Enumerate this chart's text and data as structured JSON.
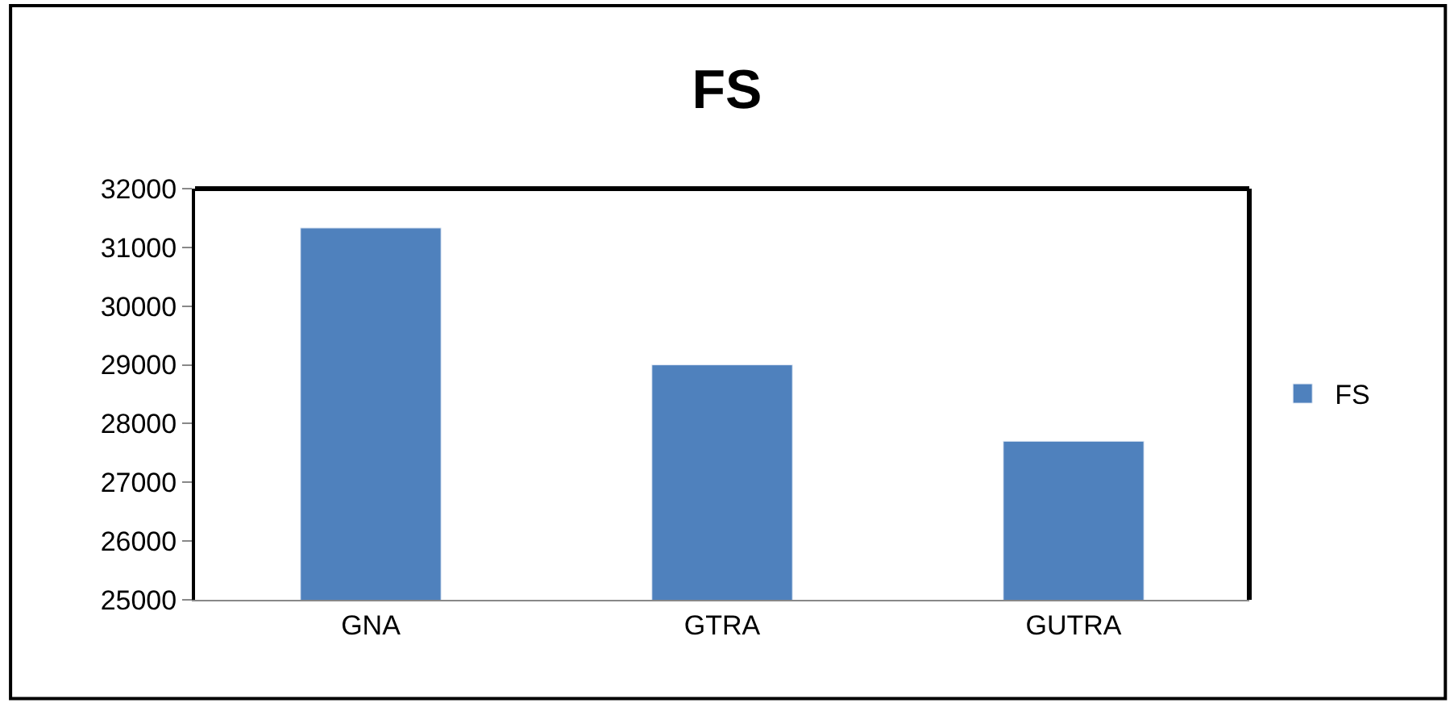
{
  "chart_data": {
    "type": "bar",
    "title": "FS",
    "categories": [
      "GNA",
      "GTRA",
      "GUTRA"
    ],
    "series": [
      {
        "name": "FS",
        "color": "#4f81bd",
        "values": [
          31330,
          29000,
          27700
        ]
      }
    ],
    "ylim": [
      25000,
      32000
    ],
    "yticks": [
      25000,
      26000,
      27000,
      28000,
      29000,
      30000,
      31000,
      32000
    ],
    "legend": "right"
  }
}
